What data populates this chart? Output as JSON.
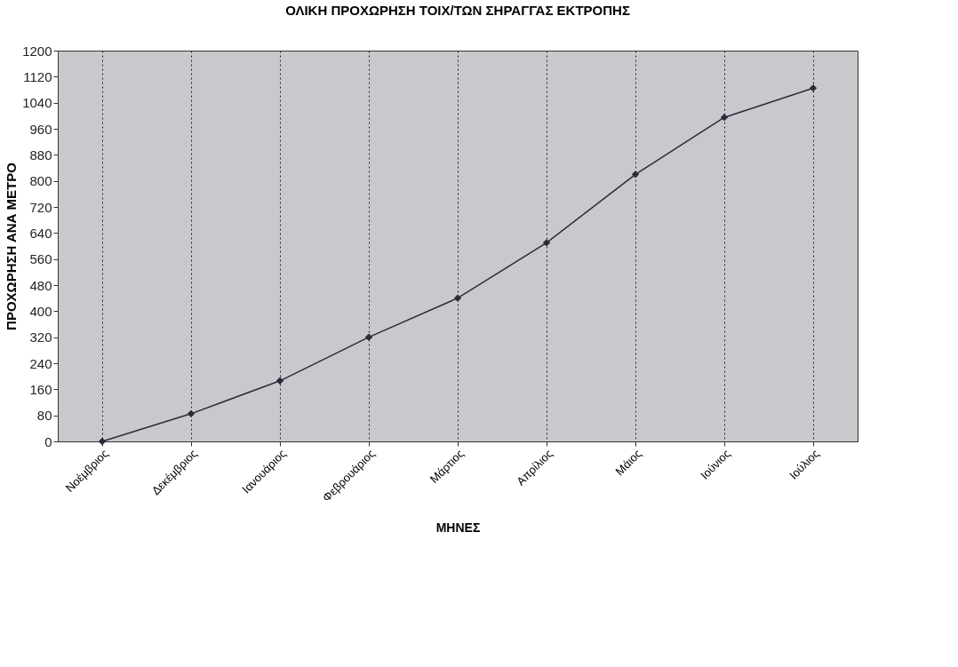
{
  "chart_data": {
    "type": "line",
    "title": "ΟΛΙΚΗ ΠΡΟΧΩΡΗΣΗ ΤΟΙΧ/ΤΩΝ ΣΗΡΑΓΓΑΣ ΕΚΤΡΟΠΗΣ",
    "xlabel": "ΜΗΝΕΣ",
    "ylabel": "ΠΡΟΧΩΡΗΣΗ ΑΝΑ ΜΕΤΡΟ",
    "categories": [
      "Νοέμβριος",
      "Δεκέμβριος",
      "Ιανουάριος",
      "Φεβρουάριος",
      "Μάρτιος",
      "Απρίλιος",
      "Μάιος",
      "Ιούνιος",
      "Ιούλιος"
    ],
    "series": [
      {
        "color": "#2b2b3a",
        "values": [
          0,
          85,
          186,
          320,
          440,
          610,
          820,
          995,
          1085
        ]
      }
    ],
    "ylim": [
      0,
      1200
    ],
    "yticks": [
      0,
      80,
      160,
      240,
      320,
      400,
      480,
      560,
      640,
      720,
      800,
      880,
      960,
      1040,
      1120,
      1200
    ],
    "grid": "x",
    "marker": "diamond",
    "line_style": "solid"
  }
}
